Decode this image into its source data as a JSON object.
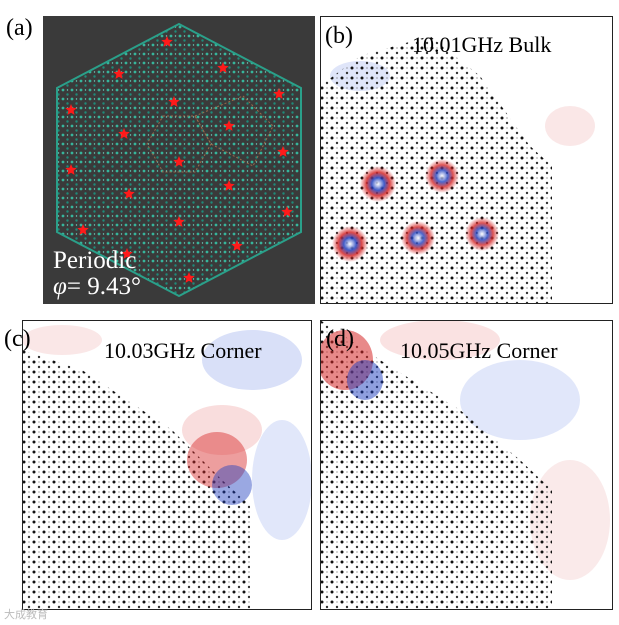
{
  "panels": {
    "a": {
      "label": "(a)",
      "caption_line1": "Periodic",
      "caption_phi": "φ",
      "caption_value": "= 9.43°"
    },
    "b": {
      "label": "(b)",
      "frequency": "10.01GHz  Bulk"
    },
    "c": {
      "label": "(c)",
      "frequency": "10.03GHz  Corner"
    },
    "d": {
      "label": "(d)",
      "frequency": "10.05GHz  Corner"
    }
  },
  "watermark": "大成教育",
  "colors": {
    "lattice_green": "#2aa08a",
    "marker_red": "#ff1a1a",
    "field_red": "#d62828",
    "field_blue": "#1f3fbf",
    "dark_bg": "#3a3a3a"
  },
  "icons": {
    "marker": "red-star-marker"
  }
}
